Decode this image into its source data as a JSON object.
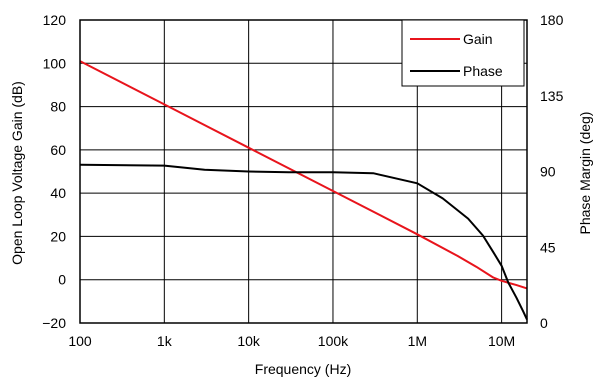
{
  "chart_data": {
    "type": "line",
    "xlabel": "Frequency (Hz)",
    "ylabel_left": "Open Loop Voltage Gain (dB)",
    "ylabel_right": "Phase Margin (deg)",
    "x_scale": "log",
    "xlim": [
      100,
      20000000
    ],
    "ylim_left": [
      -20,
      120
    ],
    "ylim_right": [
      0,
      180
    ],
    "x_ticks": [
      {
        "value": 100,
        "label": "100"
      },
      {
        "value": 1000,
        "label": "1k"
      },
      {
        "value": 10000,
        "label": "10k"
      },
      {
        "value": 100000,
        "label": "100k"
      },
      {
        "value": 1000000,
        "label": "1M"
      },
      {
        "value": 10000000,
        "label": "10M"
      }
    ],
    "y_ticks_left": [
      {
        "value": -20,
        "label": "−20"
      },
      {
        "value": 0,
        "label": "0"
      },
      {
        "value": 20,
        "label": "20"
      },
      {
        "value": 40,
        "label": "40"
      },
      {
        "value": 60,
        "label": "60"
      },
      {
        "value": 80,
        "label": "80"
      },
      {
        "value": 100,
        "label": "100"
      },
      {
        "value": 120,
        "label": "120"
      }
    ],
    "y_ticks_right": [
      {
        "value": 0,
        "label": "0"
      },
      {
        "value": 45,
        "label": "45"
      },
      {
        "value": 90,
        "label": "90"
      },
      {
        "value": 135,
        "label": "135"
      },
      {
        "value": 180,
        "label": "180"
      }
    ],
    "grid": true,
    "legend_position": "top-right",
    "series": [
      {
        "name": "Gain",
        "color": "#e8141c",
        "axis": "left",
        "x": [
          100,
          1000,
          10000,
          100000,
          1000000,
          3000000,
          5000000,
          8000000,
          10000000,
          15000000,
          20000000
        ],
        "y": [
          101,
          81,
          61,
          41,
          21,
          11,
          6,
          1,
          -0.5,
          -2.5,
          -4
        ]
      },
      {
        "name": "Phase",
        "color": "#000000",
        "axis": "right",
        "x": [
          100,
          1000,
          3000,
          10000,
          30000,
          100000,
          300000,
          1000000,
          2000000,
          4000000,
          6000000,
          8000000,
          10000000,
          12000000,
          15000000,
          18000000,
          20000000
        ],
        "y": [
          94,
          93.5,
          91,
          90,
          89.5,
          89.5,
          89,
          83,
          74,
          62,
          52,
          42,
          34,
          24,
          15,
          7,
          2
        ]
      }
    ]
  }
}
